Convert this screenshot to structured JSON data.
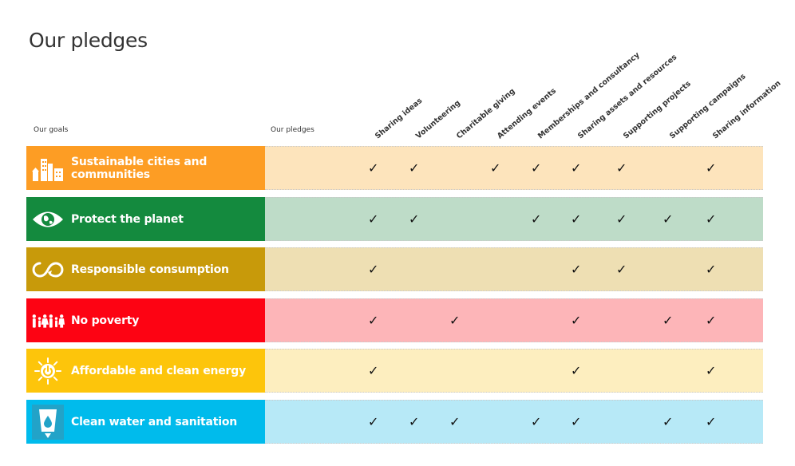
{
  "page": {
    "title": "Our pledges"
  },
  "headers": {
    "goals": "Our goals",
    "pledges": "Our pledges"
  },
  "chart_data": {
    "type": "table",
    "columns": [
      "Sharing ideas",
      "Volunteering",
      "Charitable giving",
      "Attending events",
      "Memberships and consultancy",
      "Sharing assets and resources",
      "Supporting projects",
      "Supporting campaigns",
      "Sharing information"
    ],
    "rows": [
      {
        "goal": "Sustainable cities and communities",
        "icon": "city-buildings-icon",
        "color": "#fd9d24",
        "fill": "#fde4bc",
        "pledges": [
          1,
          1,
          0,
          1,
          1,
          1,
          1,
          0,
          1
        ]
      },
      {
        "goal": "Protect the planet",
        "icon": "earth-eye-icon",
        "color": "#148a3e",
        "fill": "#bedcc8",
        "pledges": [
          1,
          1,
          0,
          0,
          1,
          1,
          1,
          1,
          1
        ]
      },
      {
        "goal": "Responsible consumption",
        "icon": "infinity-loop-icon",
        "color": "#c89a0a",
        "fill": "#eedfb3",
        "pledges": [
          1,
          0,
          0,
          0,
          0,
          1,
          1,
          0,
          1
        ]
      },
      {
        "goal": "No poverty",
        "icon": "people-family-icon",
        "color": "#fd0313",
        "fill": "#fdb5b8",
        "pledges": [
          1,
          0,
          1,
          0,
          0,
          1,
          0,
          1,
          1
        ]
      },
      {
        "goal": "Affordable and clean energy",
        "icon": "sun-power-icon",
        "color": "#fdc50b",
        "fill": "#fdeebf",
        "pledges": [
          1,
          0,
          0,
          0,
          0,
          1,
          0,
          0,
          1
        ]
      },
      {
        "goal": "Clean water and sanitation",
        "icon": "water-glass-icon",
        "color": "#00bbec",
        "fill": "#b7e9f7",
        "pledges": [
          1,
          1,
          1,
          0,
          1,
          1,
          0,
          1,
          1
        ]
      }
    ],
    "tick_symbol": "✓"
  }
}
